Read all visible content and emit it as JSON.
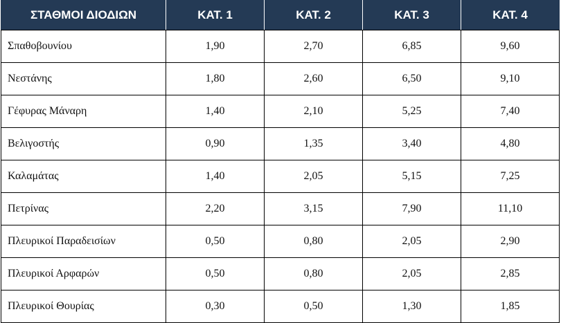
{
  "table": {
    "headers": [
      "ΣΤΑΘΜΟΙ ΔΙΟΔΙΩΝ",
      "ΚΑΤ. 1",
      "ΚΑΤ. 2",
      "ΚΑΤ. 3",
      "ΚΑΤ. 4"
    ],
    "rows": [
      [
        "Σπαθοβουνίου",
        "1,90",
        "2,70",
        "6,85",
        "9,60"
      ],
      [
        "Νεστάνης",
        "1,80",
        "2,60",
        "6,50",
        "9,10"
      ],
      [
        "Γέφυρας Μάναρη",
        "1,40",
        "2,10",
        "5,25",
        "7,40"
      ],
      [
        "Βελιγοστής",
        "0,90",
        "1,35",
        "3,40",
        "4,80"
      ],
      [
        "Καλαμάτας",
        "1,40",
        "2,05",
        "5,15",
        "7,25"
      ],
      [
        "Πετρίνας",
        "2,20",
        "3,15",
        "7,90",
        "11,10"
      ],
      [
        "Πλευρικοί Παραδεισίων",
        "0,50",
        "0,80",
        "2,05",
        "2,90"
      ],
      [
        "Πλευρικοί Αρφαρών",
        "0,50",
        "0,80",
        "2,05",
        "2,85"
      ],
      [
        "Πλευρικοί Θουρίας",
        "0,30",
        "0,50",
        "1,30",
        "1,85"
      ]
    ]
  },
  "colors": {
    "header_background": "#243a55",
    "header_text": "#ffffff",
    "border": "#000000"
  }
}
